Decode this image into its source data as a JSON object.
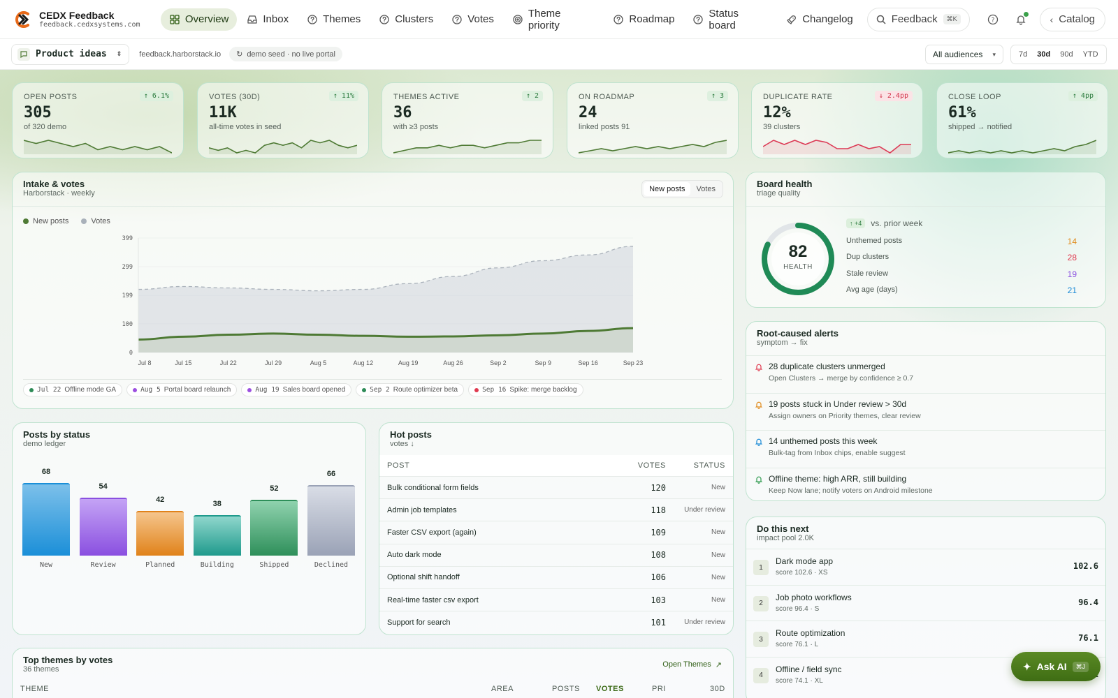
{
  "brand": {
    "title": "CEDX Feedback",
    "subtitle": "feedback.cedxsystems.com"
  },
  "nav": [
    {
      "label": "Overview",
      "icon": "grid-icon",
      "active": true
    },
    {
      "label": "Inbox",
      "icon": "inbox-icon"
    },
    {
      "label": "Themes",
      "icon": "help-circle-icon"
    },
    {
      "label": "Clusters",
      "icon": "help-circle-icon"
    },
    {
      "label": "Votes",
      "icon": "help-circle-icon"
    },
    {
      "label": "Theme priority",
      "icon": "target-icon"
    },
    {
      "label": "Roadmap",
      "icon": "help-circle-icon"
    },
    {
      "label": "Status board",
      "icon": "help-circle-icon"
    },
    {
      "label": "Changelog",
      "icon": "rocket-icon"
    }
  ],
  "search": {
    "label": "Feedback",
    "shortcut": "⌘K"
  },
  "catalog_label": "Catalog",
  "subbar": {
    "board": "Product ideas",
    "domain": "feedback.harborstack.io",
    "seed": "demo seed · no live portal",
    "audience": "All audiences",
    "ranges": [
      "7d",
      "30d",
      "90d",
      "YTD"
    ],
    "active_range": "30d"
  },
  "kpis": [
    {
      "label": "Open posts",
      "value": "305",
      "sub": "of 320 demo",
      "delta": "↑ 6.1%",
      "negative": false,
      "color": "#4e7a34",
      "spark": [
        6,
        5,
        6,
        5,
        4,
        5,
        3,
        4,
        3,
        4,
        3,
        4,
        2
      ]
    },
    {
      "label": "Votes (30d)",
      "value": "11K",
      "sub": "all-time votes in seed",
      "delta": "↑ 11%",
      "negative": false,
      "color": "#4e7a34",
      "spark": [
        4,
        3,
        4,
        2,
        3,
        2,
        5,
        6,
        5,
        6,
        4,
        7,
        6,
        7,
        5,
        4,
        5
      ]
    },
    {
      "label": "Themes active",
      "value": "36",
      "sub": "with ≥3 posts",
      "delta": "↑ 2",
      "negative": false,
      "color": "#4e7a34",
      "spark": [
        2,
        3,
        4,
        4,
        5,
        4,
        5,
        5,
        4,
        5,
        6,
        6,
        7,
        7
      ]
    },
    {
      "label": "On roadmap",
      "value": "24",
      "sub": "linked posts 91",
      "delta": "↑ 3",
      "negative": false,
      "color": "#4e7a34",
      "spark": [
        2,
        3,
        4,
        3,
        4,
        5,
        4,
        5,
        4,
        5,
        6,
        5,
        7,
        8
      ]
    },
    {
      "label": "Duplicate rate",
      "value": "12%",
      "sub": "39 clusters",
      "delta": "↓ 2.4pp",
      "negative": true,
      "color": "#dc3a55",
      "spark": [
        4,
        7,
        5,
        7,
        5,
        7,
        6,
        3,
        3,
        5,
        3,
        4,
        1,
        5,
        5
      ]
    },
    {
      "label": "Close loop",
      "value": "61%",
      "sub": "shipped → notified",
      "delta": "↑ 4pp",
      "negative": false,
      "color": "#4e7a34",
      "spark": [
        2,
        3,
        2,
        3,
        2,
        3,
        2,
        3,
        2,
        3,
        4,
        3,
        5,
        6,
        8
      ]
    }
  ],
  "intake": {
    "title": "Intake & votes",
    "subtitle": "Harborstack · weekly",
    "toggle": [
      "New posts",
      "Votes"
    ],
    "legend": [
      {
        "name": "New posts",
        "color": "#4e7a34"
      },
      {
        "name": "Votes",
        "color": "#a9b1ba"
      }
    ],
    "events": [
      {
        "date": "Jul 22",
        "label": "Offline mode GA",
        "color": "#2e8b57"
      },
      {
        "date": "Aug 5",
        "label": "Portal board relaunch",
        "color": "#9c4fe0"
      },
      {
        "date": "Aug 19",
        "label": "Sales board opened",
        "color": "#9c4fe0"
      },
      {
        "date": "Sep 2",
        "label": "Route optimizer beta",
        "color": "#2e8b57"
      },
      {
        "date": "Sep 16",
        "label": "Spike: merge backlog",
        "color": "#e0394f"
      }
    ]
  },
  "chart_data": {
    "type": "area",
    "x": [
      "Jul 8",
      "Jul 15",
      "Jul 22",
      "Jul 29",
      "Aug 5",
      "Aug 12",
      "Aug 19",
      "Aug 26",
      "Sep 2",
      "Sep 9",
      "Sep 16",
      "Sep 23"
    ],
    "y_ticks": [
      0,
      100,
      199,
      299,
      399
    ],
    "ylim": [
      0,
      399
    ],
    "series": [
      {
        "name": "New posts",
        "values": [
          45,
          55,
          62,
          66,
          62,
          58,
          55,
          56,
          60,
          66,
          75,
          85
        ]
      },
      {
        "name": "Votes",
        "values": [
          220,
          230,
          225,
          220,
          215,
          220,
          240,
          265,
          295,
          320,
          340,
          370
        ]
      }
    ]
  },
  "health": {
    "title": "Board health",
    "subtitle": "triage quality",
    "score": "82",
    "score_label": "HEALTH",
    "score_value": 82,
    "delta": "↑ +4",
    "delta_text": "vs. prior week",
    "rows": [
      {
        "label": "Unthemed posts",
        "value": "14",
        "color": "#e08a1a"
      },
      {
        "label": "Dup clusters",
        "value": "28",
        "color": "#e0394f"
      },
      {
        "label": "Stale review",
        "value": "19",
        "color": "#8a4fe0"
      },
      {
        "label": "Avg age (days)",
        "value": "21",
        "color": "#1a8ad6"
      }
    ]
  },
  "alerts": {
    "title": "Root-caused alerts",
    "subtitle": "symptom → fix",
    "items": [
      {
        "title": "28 duplicate clusters unmerged",
        "desc": "Open Clusters → merge by confidence ≥ 0.7",
        "color": "#e0394f"
      },
      {
        "title": "19 posts stuck in Under review > 30d",
        "desc": "Assign owners on Priority themes, clear review",
        "color": "#e08a1a"
      },
      {
        "title": "14 unthemed posts this week",
        "desc": "Bulk-tag from Inbox chips, enable suggest",
        "color": "#1a8ad6"
      },
      {
        "title": "Offline theme: high ARR, still building",
        "desc": "Keep Now lane; notify voters on Android milestone",
        "color": "#2e9a4e"
      }
    ]
  },
  "status": {
    "title": "Posts by status",
    "subtitle": "demo ledger",
    "bars": [
      {
        "label": "New",
        "value": 68,
        "top": "#7cc0ea",
        "bottom": "#1b8fd8"
      },
      {
        "label": "Review",
        "value": 54,
        "top": "#c4a3f5",
        "bottom": "#8a4fe0"
      },
      {
        "label": "Planned",
        "value": 42,
        "top": "#f5c58c",
        "bottom": "#e0821a"
      },
      {
        "label": "Building",
        "value": 38,
        "top": "#8fd6cc",
        "bottom": "#1f9a8c"
      },
      {
        "label": "Shipped",
        "value": 52,
        "top": "#8fd2ae",
        "bottom": "#2e8f5a"
      },
      {
        "label": "Declined",
        "value": 66,
        "top": "#d9dde6",
        "bottom": "#9aa2b6"
      }
    ]
  },
  "hot": {
    "title": "Hot posts",
    "subtitle": "votes ↓",
    "cols": [
      "POST",
      "VOTES",
      "STATUS"
    ],
    "rows": [
      {
        "post": "Bulk conditional form fields",
        "votes": "120",
        "status": "New"
      },
      {
        "post": "Admin job templates",
        "votes": "118",
        "status": "Under review"
      },
      {
        "post": "Faster CSV export (again)",
        "votes": "109",
        "status": "New"
      },
      {
        "post": "Auto dark mode",
        "votes": "108",
        "status": "New"
      },
      {
        "post": "Optional shift handoff",
        "votes": "106",
        "status": "New"
      },
      {
        "post": "Real-time faster csv export",
        "votes": "103",
        "status": "New"
      },
      {
        "post": "Support for search",
        "votes": "101",
        "status": "Under review"
      }
    ]
  },
  "next": {
    "title": "Do this next",
    "subtitle": "impact pool 2.0K",
    "items": [
      {
        "rank": "1",
        "name": "Dark mode app",
        "meta": "score 102.6 · XS",
        "score": "102.6"
      },
      {
        "rank": "2",
        "name": "Job photo workflows",
        "meta": "score 96.4 · S",
        "score": "96.4"
      },
      {
        "rank": "3",
        "name": "Route optimization",
        "meta": "score 76.1 · L",
        "score": "76.1"
      },
      {
        "rank": "4",
        "name": "Offline / field sync",
        "meta": "score 74.1 · XL",
        "score": "74.1"
      }
    ]
  },
  "themes": {
    "title": "Top themes by votes",
    "subtitle": "36 themes",
    "link": "Open Themes",
    "cols": [
      "THEME",
      "AREA",
      "POSTS",
      "VOTES",
      "PRI",
      "30D"
    ]
  },
  "askai": {
    "label": "Ask AI",
    "shortcut": "⌘J"
  }
}
